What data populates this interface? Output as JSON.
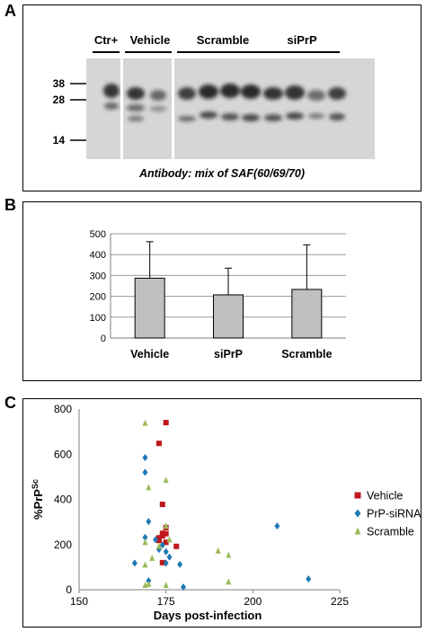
{
  "panels": [
    {
      "label": "A",
      "blot": {
        "groups": [
          "Ctr+",
          "Vehicle",
          "Scramble",
          "siPrP"
        ],
        "markers": [
          "38",
          "28",
          "14"
        ],
        "caption": "Antibody: mix of SAF(60/69/70)"
      }
    },
    {
      "label": "B"
    },
    {
      "label": "C"
    }
  ],
  "chart_data": [
    {
      "type": "bar",
      "panel": "B",
      "categories": [
        "Vehicle",
        "siPrP",
        "Scramble"
      ],
      "values": [
        287,
        207,
        233
      ],
      "error_upper": [
        462,
        335,
        447
      ],
      "yticks": [
        "0",
        "100",
        "200",
        "300",
        "400",
        "500"
      ],
      "ylim": [
        0,
        500
      ],
      "grid": true,
      "bar_color": "#c0c0c0"
    },
    {
      "type": "scatter",
      "panel": "C",
      "ylabel": "%PrP",
      "ylabel_sup": "Sc",
      "xlabel": "Days post-infection",
      "xlim": [
        150,
        225
      ],
      "ylim": [
        0,
        800
      ],
      "xticks": [
        "150",
        "175",
        "200",
        "225"
      ],
      "yticks": [
        "0",
        "200",
        "400",
        "600",
        "800"
      ],
      "legend_position": "right",
      "series": [
        {
          "name": "Vehicle",
          "marker": "square",
          "color": "#c0171c",
          "points": [
            [
              175,
              740
            ],
            [
              173,
              648
            ],
            [
              174,
              378
            ],
            [
              175,
              275
            ],
            [
              174,
              250
            ],
            [
              175,
              248
            ],
            [
              174,
              238
            ],
            [
              173,
              230
            ],
            [
              173,
              218
            ],
            [
              175,
              210
            ],
            [
              178,
              192
            ],
            [
              174,
              120
            ]
          ]
        },
        {
          "name": "PrP-siRNA",
          "marker": "diamond",
          "color": "#1f78b4",
          "points": [
            [
              169,
              585
            ],
            [
              169,
              520
            ],
            [
              170,
              302
            ],
            [
              169,
              232
            ],
            [
              172,
              222
            ],
            [
              174,
              198
            ],
            [
              173,
              178
            ],
            [
              175,
              168
            ],
            [
              176,
              145
            ],
            [
              175,
              118
            ],
            [
              166,
              118
            ],
            [
              179,
              112
            ],
            [
              170,
              40
            ],
            [
              180,
              12
            ],
            [
              207,
              282
            ],
            [
              216,
              48
            ]
          ]
        },
        {
          "name": "Scramble",
          "marker": "triangle",
          "color": "#9bbb59",
          "points": [
            [
              169,
              738
            ],
            [
              175,
              485
            ],
            [
              170,
              452
            ],
            [
              175,
              282
            ],
            [
              176,
              222
            ],
            [
              169,
              210
            ],
            [
              173,
              192
            ],
            [
              190,
              172
            ],
            [
              193,
              153
            ],
            [
              171,
              140
            ],
            [
              169,
              110
            ],
            [
              170,
              25
            ],
            [
              169,
              20
            ],
            [
              175,
              20
            ],
            [
              193,
              35
            ]
          ]
        }
      ]
    }
  ]
}
